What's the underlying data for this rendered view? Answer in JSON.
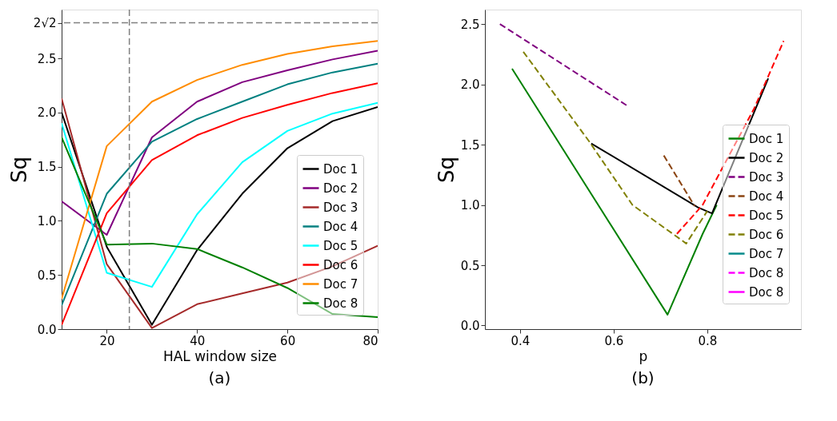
{
  "chart_data": [
    {
      "type": "line",
      "xlabel": "HAL window size",
      "ylabel": "Sq",
      "annotations": [
        "(a)"
      ],
      "xlim": [
        10,
        80
      ],
      "ylim": [
        0,
        2.95
      ],
      "xticks": [
        20,
        40,
        60,
        80
      ],
      "yticks": [
        {
          "value": 0,
          "label": "0.0"
        },
        0.5,
        {
          "value": 1,
          "label": "1.0"
        },
        1.5,
        {
          "value": 2,
          "label": "2.0"
        },
        2.5,
        {
          "value": 2.828,
          "label": "2√2"
        }
      ],
      "legend": "bottom right",
      "grid": false,
      "line_style": "solid",
      "x": [
        10,
        20,
        30,
        40,
        50,
        60,
        70,
        80
      ],
      "ref_lines": [
        {
          "axis": "y",
          "value": 2.828,
          "color": "#808080",
          "line_style": "dashed"
        },
        {
          "axis": "x",
          "value": 25,
          "color": "#808080",
          "line_style": "dashed"
        }
      ],
      "series": [
        {
          "name": "Doc 1",
          "color": "#000000",
          "values": [
            2.0,
            0.76,
            0.04,
            0.73,
            1.25,
            1.67,
            1.92,
            2.05
          ]
        },
        {
          "name": "Doc 2",
          "color": "#800080",
          "values": [
            1.18,
            0.87,
            1.77,
            2.1,
            2.28,
            2.39,
            2.49,
            2.57
          ]
        },
        {
          "name": "Doc 3",
          "color": "#a52a2a",
          "values": [
            2.13,
            0.6,
            0.01,
            0.23,
            0.33,
            0.43,
            0.58,
            0.77
          ]
        },
        {
          "name": "Doc 4",
          "color": "#008080",
          "values": [
            0.22,
            1.25,
            1.73,
            1.94,
            2.1,
            2.26,
            2.37,
            2.45
          ]
        },
        {
          "name": "Doc 5",
          "color": "#00ffff",
          "values": [
            1.9,
            0.52,
            0.39,
            1.06,
            1.54,
            1.83,
            1.99,
            2.09
          ]
        },
        {
          "name": "Doc 6",
          "color": "#ff0000",
          "values": [
            0.04,
            1.07,
            1.56,
            1.79,
            1.95,
            2.07,
            2.18,
            2.27
          ]
        },
        {
          "name": "Doc 7",
          "color": "#ff8c00",
          "values": [
            0.28,
            1.69,
            2.1,
            2.3,
            2.44,
            2.54,
            2.61,
            2.66
          ]
        },
        {
          "name": "Doc 8",
          "color": "#008000",
          "values": [
            1.77,
            0.78,
            0.79,
            0.74,
            0.57,
            0.38,
            0.14,
            0.11
          ]
        }
      ]
    },
    {
      "type": "line",
      "xlabel": "p",
      "ylabel": "Sq",
      "annotations": [
        "(b)"
      ],
      "xlim": [
        0.325,
        1.0
      ],
      "ylim": [
        -0.03,
        2.62
      ],
      "xticks": [
        0.4,
        0.6,
        0.8
      ],
      "yticks": [
        {
          "value": 0,
          "label": "0.0"
        },
        0.5,
        {
          "value": 1,
          "label": "1.0"
        },
        1.5,
        {
          "value": 2,
          "label": "2.0"
        },
        2.5
      ],
      "legend": "right",
      "grid": false,
      "series": [
        {
          "name": "Doc 1",
          "color": "#008000",
          "line_style": "solid",
          "x": [
            0.383,
            0.715,
            0.79,
            0.82
          ],
          "values": [
            2.13,
            0.09,
            0.76,
            1.0
          ]
        },
        {
          "name": "Doc 2",
          "color": "#000000",
          "line_style": "solid",
          "x": [
            0.552,
            0.78,
            0.81,
            0.93
          ],
          "values": [
            1.51,
            0.98,
            0.93,
            2.05
          ]
        },
        {
          "name": "Doc 3",
          "color": "#800080",
          "line_style": "dashed",
          "x": [
            0.357,
            0.63
          ],
          "values": [
            2.5,
            1.82
          ]
        },
        {
          "name": "Doc 4",
          "color": "#8b4513",
          "line_style": "dashed",
          "x": [
            0.707,
            0.773
          ],
          "values": [
            1.41,
            0.99
          ]
        },
        {
          "name": "Doc 5",
          "color": "#ff0000",
          "line_style": "dashed",
          "x": [
            0.735,
            0.79,
            0.9,
            0.963
          ],
          "values": [
            0.76,
            1.0,
            1.8,
            2.36
          ]
        },
        {
          "name": "Doc 6",
          "color": "#808000",
          "line_style": "dashed",
          "x": [
            0.407,
            0.547,
            0.64,
            0.755,
            0.8
          ],
          "values": [
            2.27,
            1.53,
            1.0,
            0.68,
            0.95
          ]
        },
        {
          "name": "Doc 7",
          "color": "#008b8b",
          "line_style": "solid"
        },
        {
          "name": "Doc 8",
          "color": "#ff00ff",
          "line_style": "dashed"
        },
        {
          "name": "Doc 8",
          "color": "#ff00ff",
          "line_style": "solid"
        }
      ]
    }
  ]
}
